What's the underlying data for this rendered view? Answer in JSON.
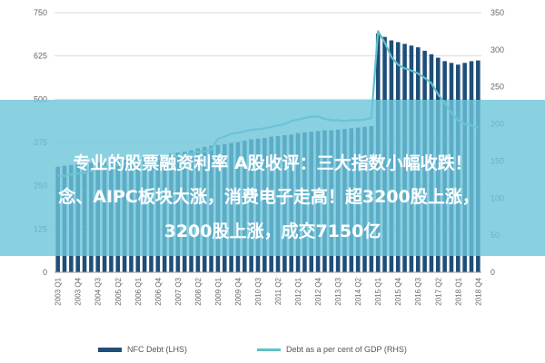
{
  "chart_data": {
    "type": "bar+line",
    "categories": [
      "2003 Q1",
      "2003 Q2",
      "2003 Q3",
      "2003 Q4",
      "2004 Q1",
      "2004 Q2",
      "2004 Q3",
      "2004 Q4",
      "2005 Q1",
      "2005 Q2",
      "2005 Q3",
      "2005 Q4",
      "2006 Q1",
      "2006 Q2",
      "2006 Q3",
      "2006 Q4",
      "2007 Q1",
      "2007 Q2",
      "2007 Q3",
      "2007 Q4",
      "2008 Q1",
      "2008 Q2",
      "2008 Q3",
      "2008 Q4",
      "2009 Q1",
      "2009 Q2",
      "2009 Q3",
      "2009 Q4",
      "2010 Q1",
      "2010 Q2",
      "2010 Q3",
      "2010 Q4",
      "2011 Q1",
      "2011 Q2",
      "2011 Q3",
      "2011 Q4",
      "2012 Q1",
      "2012 Q2",
      "2012 Q3",
      "2012 Q4",
      "2013 Q1",
      "2013 Q2",
      "2013 Q3",
      "2013 Q4",
      "2014 Q1",
      "2014 Q2",
      "2014 Q3",
      "2014 Q4",
      "2015 Q1",
      "2015 Q2",
      "2015 Q3",
      "2015 Q4",
      "2016 Q1",
      "2016 Q2",
      "2016 Q3",
      "2016 Q4",
      "2017 Q1",
      "2017 Q2",
      "2017 Q3",
      "2017 Q4",
      "2018 Q1",
      "2018 Q2",
      "2018 Q3",
      "2018 Q4"
    ],
    "x_tick_labels": [
      "2003 Q1",
      "2003 Q4",
      "2004 Q3",
      "2005 Q2",
      "2006 Q1",
      "2006 Q4",
      "2007 Q3",
      "2008 Q2",
      "2009 Q1",
      "2009 Q4",
      "2010 Q3",
      "2011 Q2",
      "2012 Q1",
      "2012 Q4",
      "2013 Q3",
      "2014 Q2",
      "2015 Q1",
      "2015 Q4",
      "2016 Q3",
      "2017 Q2",
      "2018 Q1",
      "2018 Q4"
    ],
    "series": [
      {
        "name": "NFC Debt (LHS)",
        "type": "bar",
        "axis": "left",
        "color": "#1f4e79",
        "values": [
          305,
          308,
          310,
          312,
          313,
          316,
          318,
          320,
          322,
          324,
          325,
          328,
          330,
          332,
          335,
          338,
          340,
          343,
          346,
          348,
          352,
          358,
          362,
          366,
          368,
          370,
          373,
          376,
          380,
          384,
          386,
          388,
          392,
          394,
          396,
          398,
          402,
          404,
          406,
          408,
          410,
          410,
          412,
          414,
          416,
          418,
          420,
          422,
          690,
          680,
          670,
          665,
          660,
          655,
          650,
          640,
          630,
          620,
          610,
          605,
          600,
          605,
          610,
          612
        ]
      },
      {
        "name": "Debt as a per cent of GDP (RHS)",
        "type": "line",
        "axis": "right",
        "color": "#5ec2c8",
        "values": [
          130,
          130,
          132,
          133,
          134,
          137,
          140,
          142,
          143,
          145,
          146,
          148,
          150,
          152,
          152,
          153,
          155,
          155,
          156,
          158,
          160,
          162,
          163,
          165,
          180,
          183,
          187,
          188,
          190,
          192,
          193,
          194,
          196,
          198,
          200,
          204,
          206,
          208,
          210,
          210,
          207,
          205,
          205,
          204,
          205,
          205,
          206,
          208,
          325,
          310,
          290,
          280,
          275,
          272,
          268,
          262,
          255,
          240,
          228,
          215,
          205,
          200,
          198,
          195
        ]
      }
    ],
    "y_left": {
      "ticks": [
        "0",
        "125",
        "250",
        "375",
        "500",
        "625",
        "750"
      ],
      "range": [
        0,
        750
      ]
    },
    "y_right": {
      "ticks": [
        "0",
        "50",
        "100",
        "150",
        "200",
        "250",
        "300",
        "350"
      ],
      "range": [
        0,
        350
      ]
    },
    "grid": true,
    "legend_position": "bottom"
  },
  "banner": {
    "line1": "专业的股票融资利率 A股收评：三大指数小幅收跌！",
    "line2": "念、AIPC板块大涨，消费电子走高！超3200股上涨，",
    "line3": "3200股上涨，成交7150亿"
  },
  "colors": {
    "bar": "#1f4e79",
    "line": "#5ec2c8",
    "overlay": "#6cc4da"
  }
}
